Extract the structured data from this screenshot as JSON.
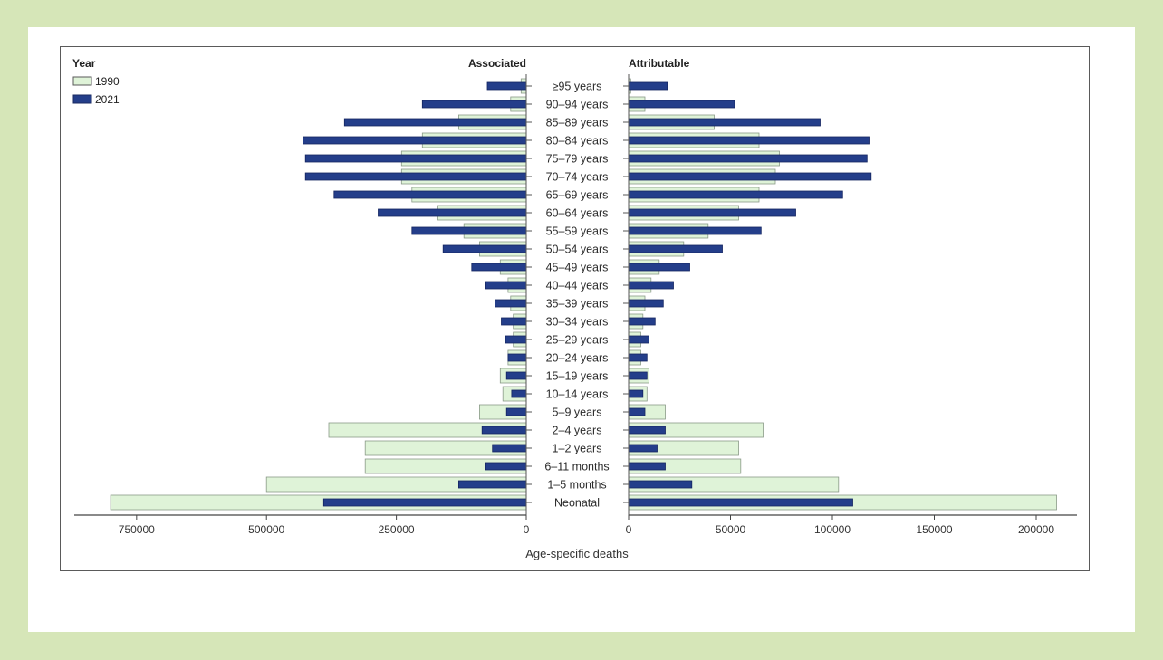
{
  "chart_data": {
    "type": "bar",
    "orientation": "horizontal-butterfly",
    "legend": {
      "title": "Year",
      "placement": "top-left",
      "entries": [
        {
          "label": "1990",
          "color": "#dff3d8"
        },
        {
          "label": "2021",
          "color": "#243e8a"
        }
      ]
    },
    "xlabel": "Age-specific deaths",
    "categories": [
      "≥95 years",
      "90–94 years",
      "85–89 years",
      "80–84 years",
      "75–79 years",
      "70–74 years",
      "65–69 years",
      "60–64 years",
      "55–59 years",
      "50–54 years",
      "45–49 years",
      "40–44 years",
      "35–39 years",
      "30–34 years",
      "25–29 years",
      "20–24 years",
      "15–19 years",
      "10–14 years",
      "5–9 years",
      "2–4 years",
      "1–2 years",
      "6–11 months",
      "1–5 months",
      "Neonatal"
    ],
    "panels": [
      {
        "title": "Associated",
        "direction": "left",
        "xlim": [
          0,
          870000
        ],
        "ticks": [
          0,
          250000,
          500000,
          750000
        ],
        "tick_labels": [
          "0",
          "250000",
          "500000",
          "750000"
        ],
        "series": [
          {
            "name": "1990",
            "values": [
              10000,
              30000,
              130000,
              200000,
              240000,
              240000,
              220000,
              170000,
              120000,
              90000,
              50000,
              35000,
              30000,
              25000,
              25000,
              35000,
              50000,
              45000,
              90000,
              380000,
              310000,
              310000,
              500000,
              800000
            ]
          },
          {
            "name": "2021",
            "values": [
              75000,
              200000,
              350000,
              430000,
              425000,
              425000,
              370000,
              285000,
              220000,
              160000,
              105000,
              78000,
              60000,
              48000,
              40000,
              35000,
              38000,
              28000,
              38000,
              85000,
              65000,
              78000,
              130000,
              390000
            ]
          }
        ]
      },
      {
        "title": "Attributable",
        "direction": "right",
        "xlim": [
          0,
          220000
        ],
        "ticks": [
          0,
          50000,
          100000,
          150000,
          200000
        ],
        "tick_labels": [
          "0",
          "50000",
          "100000",
          "150000",
          "200000"
        ],
        "series": [
          {
            "name": "1990",
            "values": [
              1000,
              8000,
              42000,
              64000,
              74000,
              72000,
              64000,
              54000,
              39000,
              27000,
              15000,
              11000,
              8000,
              7000,
              6000,
              6000,
              10000,
              9000,
              18000,
              66000,
              54000,
              55000,
              103000,
              210000
            ]
          },
          {
            "name": "2021",
            "values": [
              19000,
              52000,
              94000,
              118000,
              117000,
              119000,
              105000,
              82000,
              65000,
              46000,
              30000,
              22000,
              17000,
              13000,
              10000,
              9000,
              9000,
              7000,
              8000,
              18000,
              14000,
              18000,
              31000,
              110000
            ]
          }
        ]
      }
    ]
  }
}
